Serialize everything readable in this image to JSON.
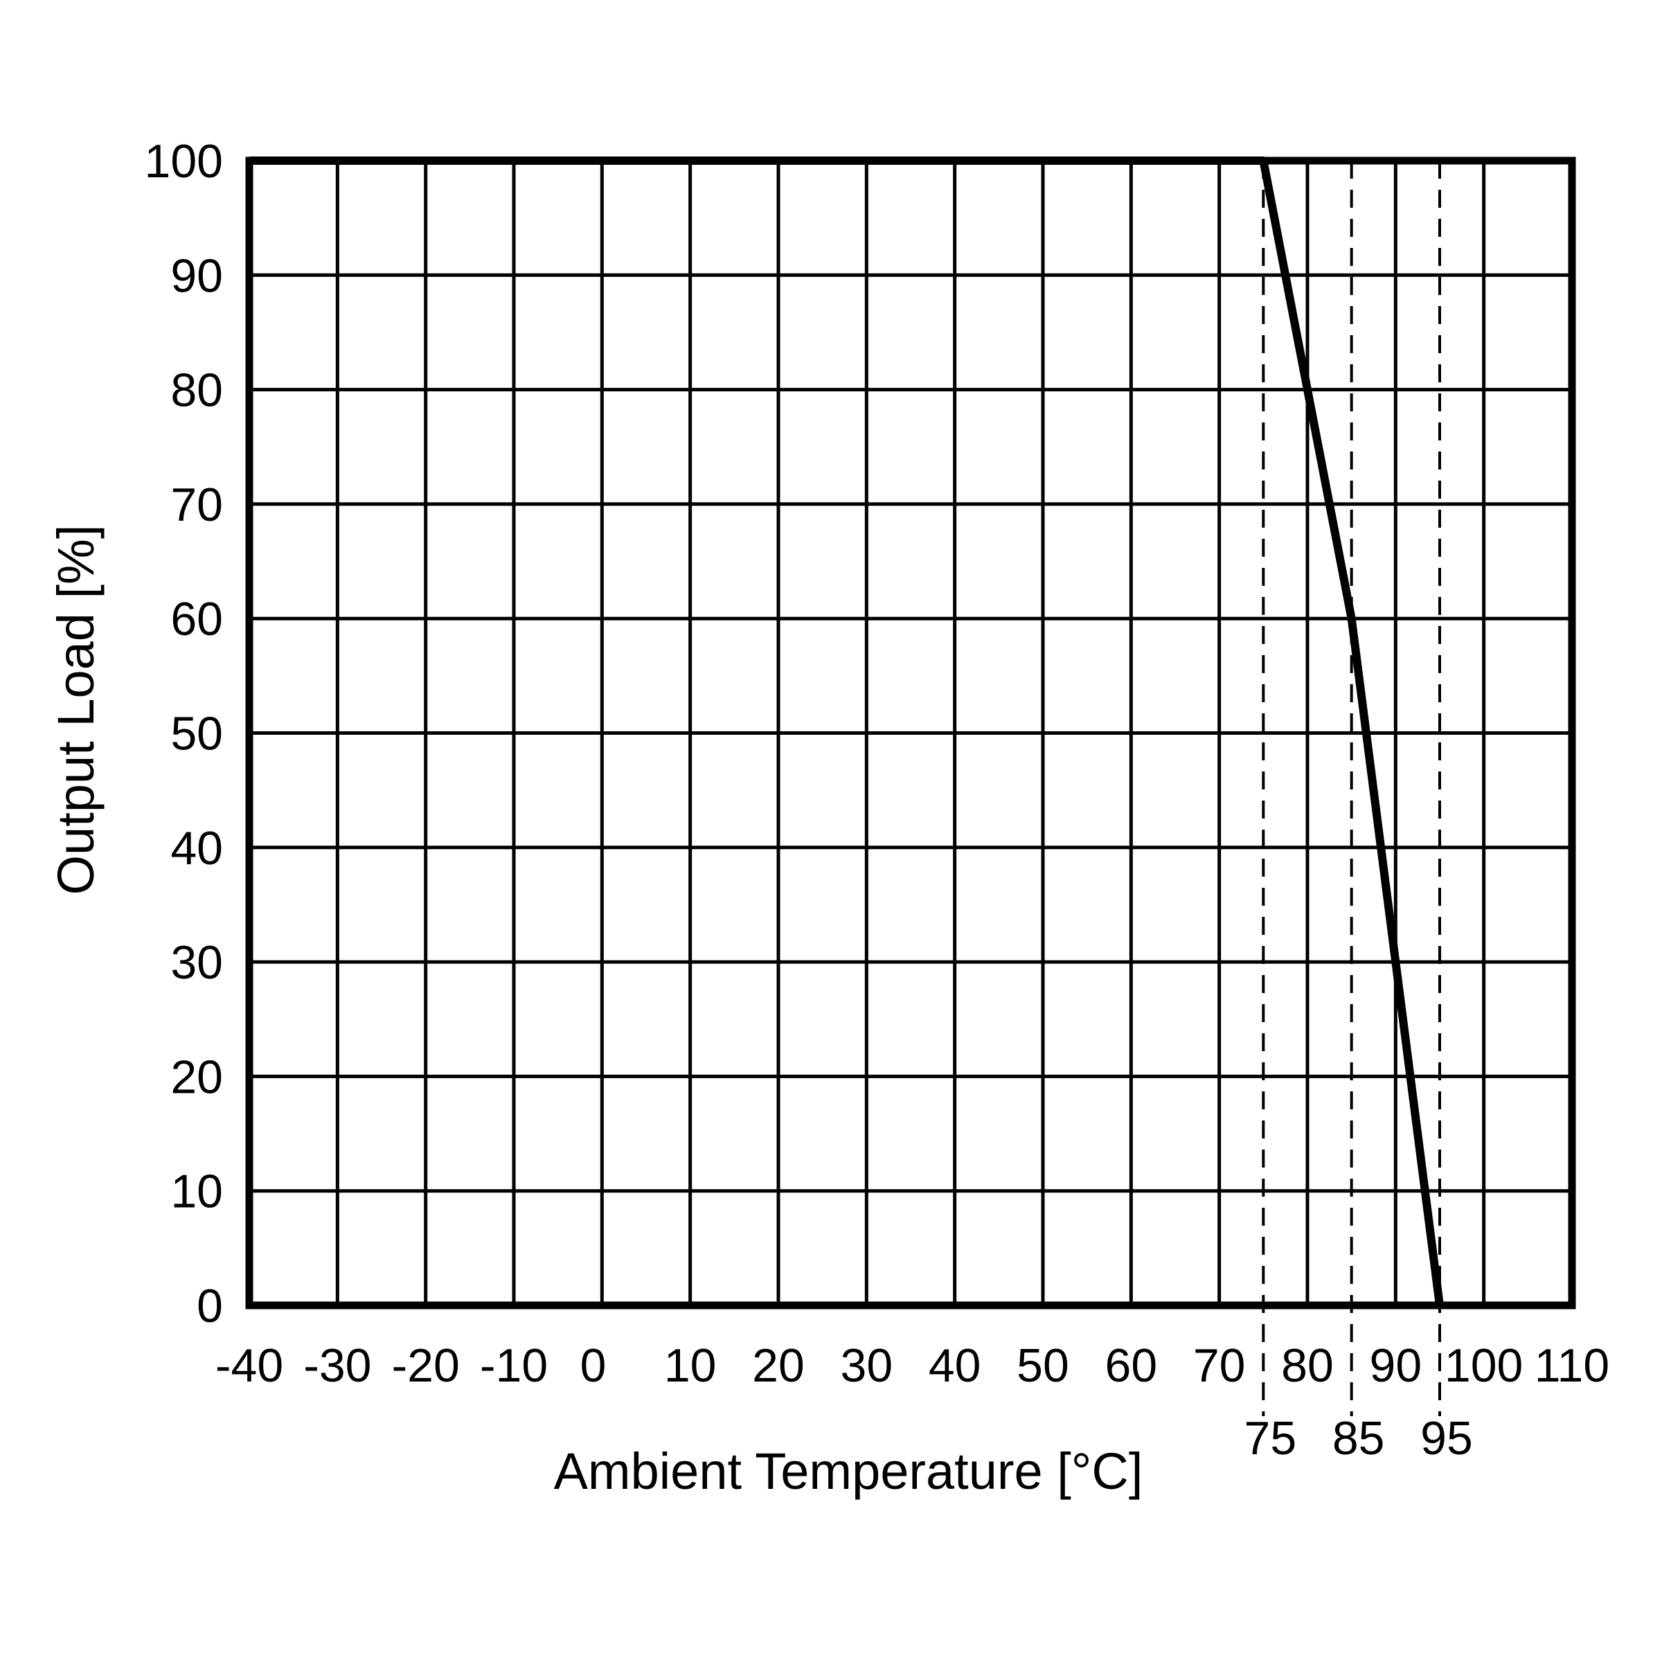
{
  "chart_data": {
    "type": "line",
    "xlabel": "Ambient Temperature [°C]",
    "ylabel": "Output Load [%]",
    "xlim": [
      -40,
      110
    ],
    "ylim": [
      0,
      100
    ],
    "grid": true,
    "x_grid_positions": [
      -40,
      -30,
      -20,
      -10,
      0,
      10,
      20,
      30,
      40,
      50,
      60,
      70,
      80,
      90,
      100,
      110
    ],
    "x_tick_labels": [
      {
        "x": -40,
        "text": "-40"
      },
      {
        "x": -30,
        "text": "-30"
      },
      {
        "x": -20,
        "text": "-20"
      },
      {
        "x": -10,
        "text": "-10"
      },
      {
        "x": -1,
        "text": "0"
      },
      {
        "x": 10,
        "text": "10"
      },
      {
        "x": 20,
        "text": "20"
      },
      {
        "x": 30,
        "text": "30"
      },
      {
        "x": 40,
        "text": "40"
      },
      {
        "x": 50,
        "text": "50"
      },
      {
        "x": 60,
        "text": "60"
      },
      {
        "x": 70,
        "text": "70"
      },
      {
        "x": 80,
        "text": "80"
      },
      {
        "x": 90,
        "text": "90"
      },
      {
        "x": 100,
        "text": "100"
      },
      {
        "x": 110,
        "text": "110"
      }
    ],
    "y_ticks": [
      0,
      10,
      20,
      30,
      40,
      50,
      60,
      70,
      80,
      90,
      100
    ],
    "y_tick_labels": [
      "0",
      "10",
      "20",
      "30",
      "40",
      "50",
      "60",
      "70",
      "80",
      "90",
      "100"
    ],
    "reference_ticks": [
      {
        "x": 75,
        "text": "75"
      },
      {
        "x": 85,
        "text": "85"
      },
      {
        "x": 95,
        "text": "95"
      }
    ],
    "series": [
      {
        "x": [
          -40,
          75,
          80,
          85,
          90,
          95
        ],
        "y": [
          100,
          100,
          80,
          60,
          30,
          0
        ]
      }
    ]
  }
}
